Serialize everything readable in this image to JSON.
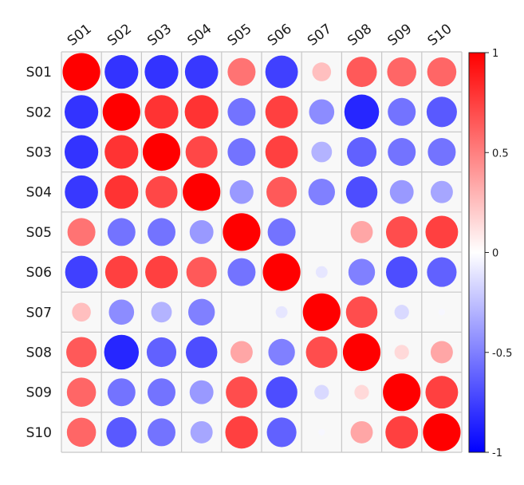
{
  "chart_data": {
    "type": "heatmap",
    "style": "circle-correlation-matrix",
    "title": "",
    "xlabel": "",
    "ylabel": "",
    "rows": [
      "S01",
      "S02",
      "S03",
      "S04",
      "S05",
      "S06",
      "S07",
      "S08",
      "S09",
      "S10"
    ],
    "cols": [
      "S01",
      "S02",
      "S03",
      "S04",
      "S05",
      "S06",
      "S07",
      "S08",
      "S09",
      "S10"
    ],
    "values": [
      [
        1.0,
        -0.8,
        -0.8,
        -0.78,
        0.55,
        -0.75,
        0.25,
        0.65,
        0.6,
        0.6
      ],
      [
        -0.8,
        1.0,
        0.8,
        0.8,
        -0.55,
        0.75,
        -0.45,
        -0.85,
        -0.55,
        -0.65
      ],
      [
        -0.8,
        0.8,
        1.0,
        0.72,
        -0.55,
        0.75,
        -0.3,
        -0.62,
        -0.55,
        -0.55
      ],
      [
        -0.78,
        0.8,
        0.72,
        1.0,
        -0.4,
        0.65,
        -0.5,
        -0.7,
        -0.4,
        -0.35
      ],
      [
        0.55,
        -0.55,
        -0.55,
        -0.4,
        1.0,
        -0.55,
        0.0,
        0.35,
        0.7,
        0.75
      ],
      [
        -0.75,
        0.75,
        0.75,
        0.65,
        -0.55,
        1.0,
        -0.1,
        -0.5,
        -0.7,
        -0.62
      ],
      [
        0.25,
        -0.45,
        -0.3,
        -0.5,
        0.0,
        -0.1,
        1.0,
        0.7,
        -0.15,
        -0.03
      ],
      [
        0.65,
        -0.85,
        -0.62,
        -0.7,
        0.35,
        -0.5,
        0.7,
        1.0,
        0.15,
        0.35
      ],
      [
        0.6,
        -0.55,
        -0.55,
        -0.4,
        0.7,
        -0.7,
        -0.15,
        0.15,
        1.0,
        0.75
      ],
      [
        0.6,
        -0.65,
        -0.55,
        -0.35,
        0.75,
        -0.62,
        -0.03,
        0.35,
        0.75,
        1.0
      ]
    ],
    "vlim": [
      -1,
      1
    ],
    "colorbar": {
      "position": "right",
      "ticks": [
        1,
        0.5,
        0,
        -0.5,
        -1
      ],
      "tick_labels": [
        "1",
        "0.5",
        "0",
        "-0.5",
        "-1"
      ],
      "colors": {
        "negative": "#0000ff",
        "zero": "#ffffff",
        "positive": "#ff0000"
      }
    },
    "grid": true
  }
}
